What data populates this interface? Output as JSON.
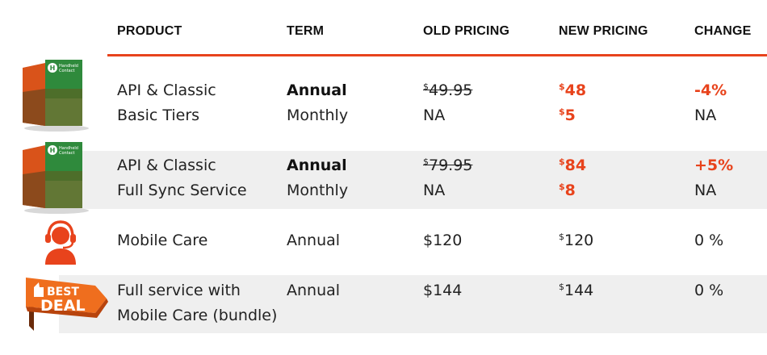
{
  "headers": {
    "product": "PRODUCT",
    "term": "TERM",
    "old_pricing": "OLD PRICING",
    "new_pricing": "NEW PRICING",
    "change": "CHANGE"
  },
  "box_text": {
    "brand_line1": "Handheld",
    "brand_line2": "Contact"
  },
  "rows": [
    {
      "product_line1": "API & Classic",
      "product_line2": "Basic Tiers",
      "term_line1": "Annual",
      "term_line2": "Monthly",
      "old_sup": "$",
      "old_line1": "49.95",
      "old_line2": "NA",
      "new_sup1": "$",
      "new_line1": "48",
      "new_sup2": "$",
      "new_line2": "5",
      "change_line1": "-4%",
      "change_line2": "NA"
    },
    {
      "product_line1": "API & Classic",
      "product_line2": "Full Sync Service",
      "term_line1": "Annual",
      "term_line2": "Monthly",
      "old_sup": "$",
      "old_line1": "79.95",
      "old_line2": "NA",
      "new_sup1": "$",
      "new_line1": "84",
      "new_sup2": "$",
      "new_line2": "8",
      "change_line1": "+5%",
      "change_line2": "NA"
    },
    {
      "product_line1": "Mobile Care",
      "term_line1": "Annual",
      "old_line1": "$120",
      "new_sup1": "$",
      "new_line1": "120",
      "change_line1": "0 %"
    },
    {
      "product_line1": "Full service with",
      "product_line2": "Mobile Care (bundle)",
      "term_line1": "Annual",
      "old_line1": "$144",
      "new_sup1": "$",
      "new_line1": "144",
      "change_line1": "0 %"
    }
  ],
  "badge": {
    "line1": "BEST",
    "line2": "DEAL"
  },
  "colors": {
    "accent": "#e8431c",
    "band": "#efefef",
    "box_green": "#2f8a3c",
    "box_orange": "#e25a1c"
  }
}
